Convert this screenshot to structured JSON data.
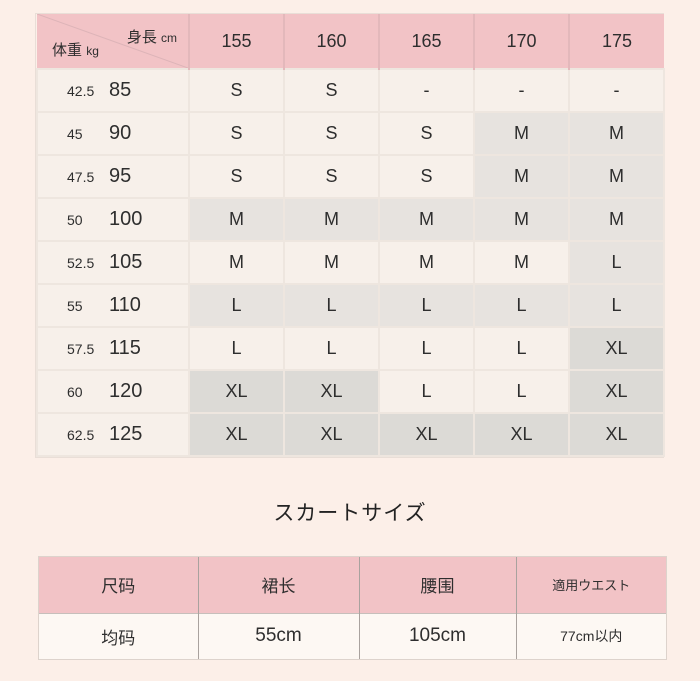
{
  "colors": {
    "page_bg": "#fcefe8",
    "header_pink": "#f2c3c6",
    "header_pink_divider": "#e3b8bb",
    "cell_cream": "#f7f0ea",
    "cell_gray": "#e7e3df",
    "cell_gray_dark": "#dcdad6",
    "text": "#2e2e2e"
  },
  "size_chart": {
    "corner": {
      "top_label": "身長",
      "top_unit": "cm",
      "bottom_label": "体重",
      "bottom_unit": "kg"
    },
    "height_columns": [
      "155",
      "160",
      "165",
      "170",
      "175"
    ],
    "rows": [
      {
        "weight_kg": "42.5",
        "weight_jin": "85",
        "cells": [
          {
            "v": "S",
            "shade": 0
          },
          {
            "v": "S",
            "shade": 0
          },
          {
            "v": "-",
            "shade": 0
          },
          {
            "v": "-",
            "shade": 0
          },
          {
            "v": "-",
            "shade": 0
          }
        ]
      },
      {
        "weight_kg": "45",
        "weight_jin": "90",
        "cells": [
          {
            "v": "S",
            "shade": 0
          },
          {
            "v": "S",
            "shade": 0
          },
          {
            "v": "S",
            "shade": 0
          },
          {
            "v": "M",
            "shade": 1
          },
          {
            "v": "M",
            "shade": 1
          }
        ]
      },
      {
        "weight_kg": "47.5",
        "weight_jin": "95",
        "cells": [
          {
            "v": "S",
            "shade": 0
          },
          {
            "v": "S",
            "shade": 0
          },
          {
            "v": "S",
            "shade": 0
          },
          {
            "v": "M",
            "shade": 1
          },
          {
            "v": "M",
            "shade": 1
          }
        ]
      },
      {
        "weight_kg": "50",
        "weight_jin": "100",
        "cells": [
          {
            "v": "M",
            "shade": 1
          },
          {
            "v": "M",
            "shade": 1
          },
          {
            "v": "M",
            "shade": 1
          },
          {
            "v": "M",
            "shade": 1
          },
          {
            "v": "M",
            "shade": 1
          }
        ]
      },
      {
        "weight_kg": "52.5",
        "weight_jin": "105",
        "cells": [
          {
            "v": "M",
            "shade": 0
          },
          {
            "v": "M",
            "shade": 0
          },
          {
            "v": "M",
            "shade": 0
          },
          {
            "v": "M",
            "shade": 0
          },
          {
            "v": "L",
            "shade": 1
          }
        ]
      },
      {
        "weight_kg": "55",
        "weight_jin": "110",
        "cells": [
          {
            "v": "L",
            "shade": 1
          },
          {
            "v": "L",
            "shade": 1
          },
          {
            "v": "L",
            "shade": 1
          },
          {
            "v": "L",
            "shade": 1
          },
          {
            "v": "L",
            "shade": 1
          }
        ]
      },
      {
        "weight_kg": "57.5",
        "weight_jin": "115",
        "cells": [
          {
            "v": "L",
            "shade": 0
          },
          {
            "v": "L",
            "shade": 0
          },
          {
            "v": "L",
            "shade": 0
          },
          {
            "v": "L",
            "shade": 0
          },
          {
            "v": "XL",
            "shade": 2
          }
        ]
      },
      {
        "weight_kg": "60",
        "weight_jin": "120",
        "cells": [
          {
            "v": "XL",
            "shade": 2
          },
          {
            "v": "XL",
            "shade": 2
          },
          {
            "v": "L",
            "shade": 0
          },
          {
            "v": "L",
            "shade": 0
          },
          {
            "v": "XL",
            "shade": 2
          }
        ]
      },
      {
        "weight_kg": "62.5",
        "weight_jin": "125",
        "cells": [
          {
            "v": "XL",
            "shade": 2
          },
          {
            "v": "XL",
            "shade": 2
          },
          {
            "v": "XL",
            "shade": 2
          },
          {
            "v": "XL",
            "shade": 2
          },
          {
            "v": "XL",
            "shade": 2
          }
        ]
      }
    ]
  },
  "skirt_heading": "スカートサイズ",
  "skirt_chart": {
    "headers": [
      "尺码",
      "裙长",
      "腰围",
      "適用ウエスト"
    ],
    "values": [
      "均码",
      "55cm",
      "105cm",
      "77cm以内"
    ]
  }
}
